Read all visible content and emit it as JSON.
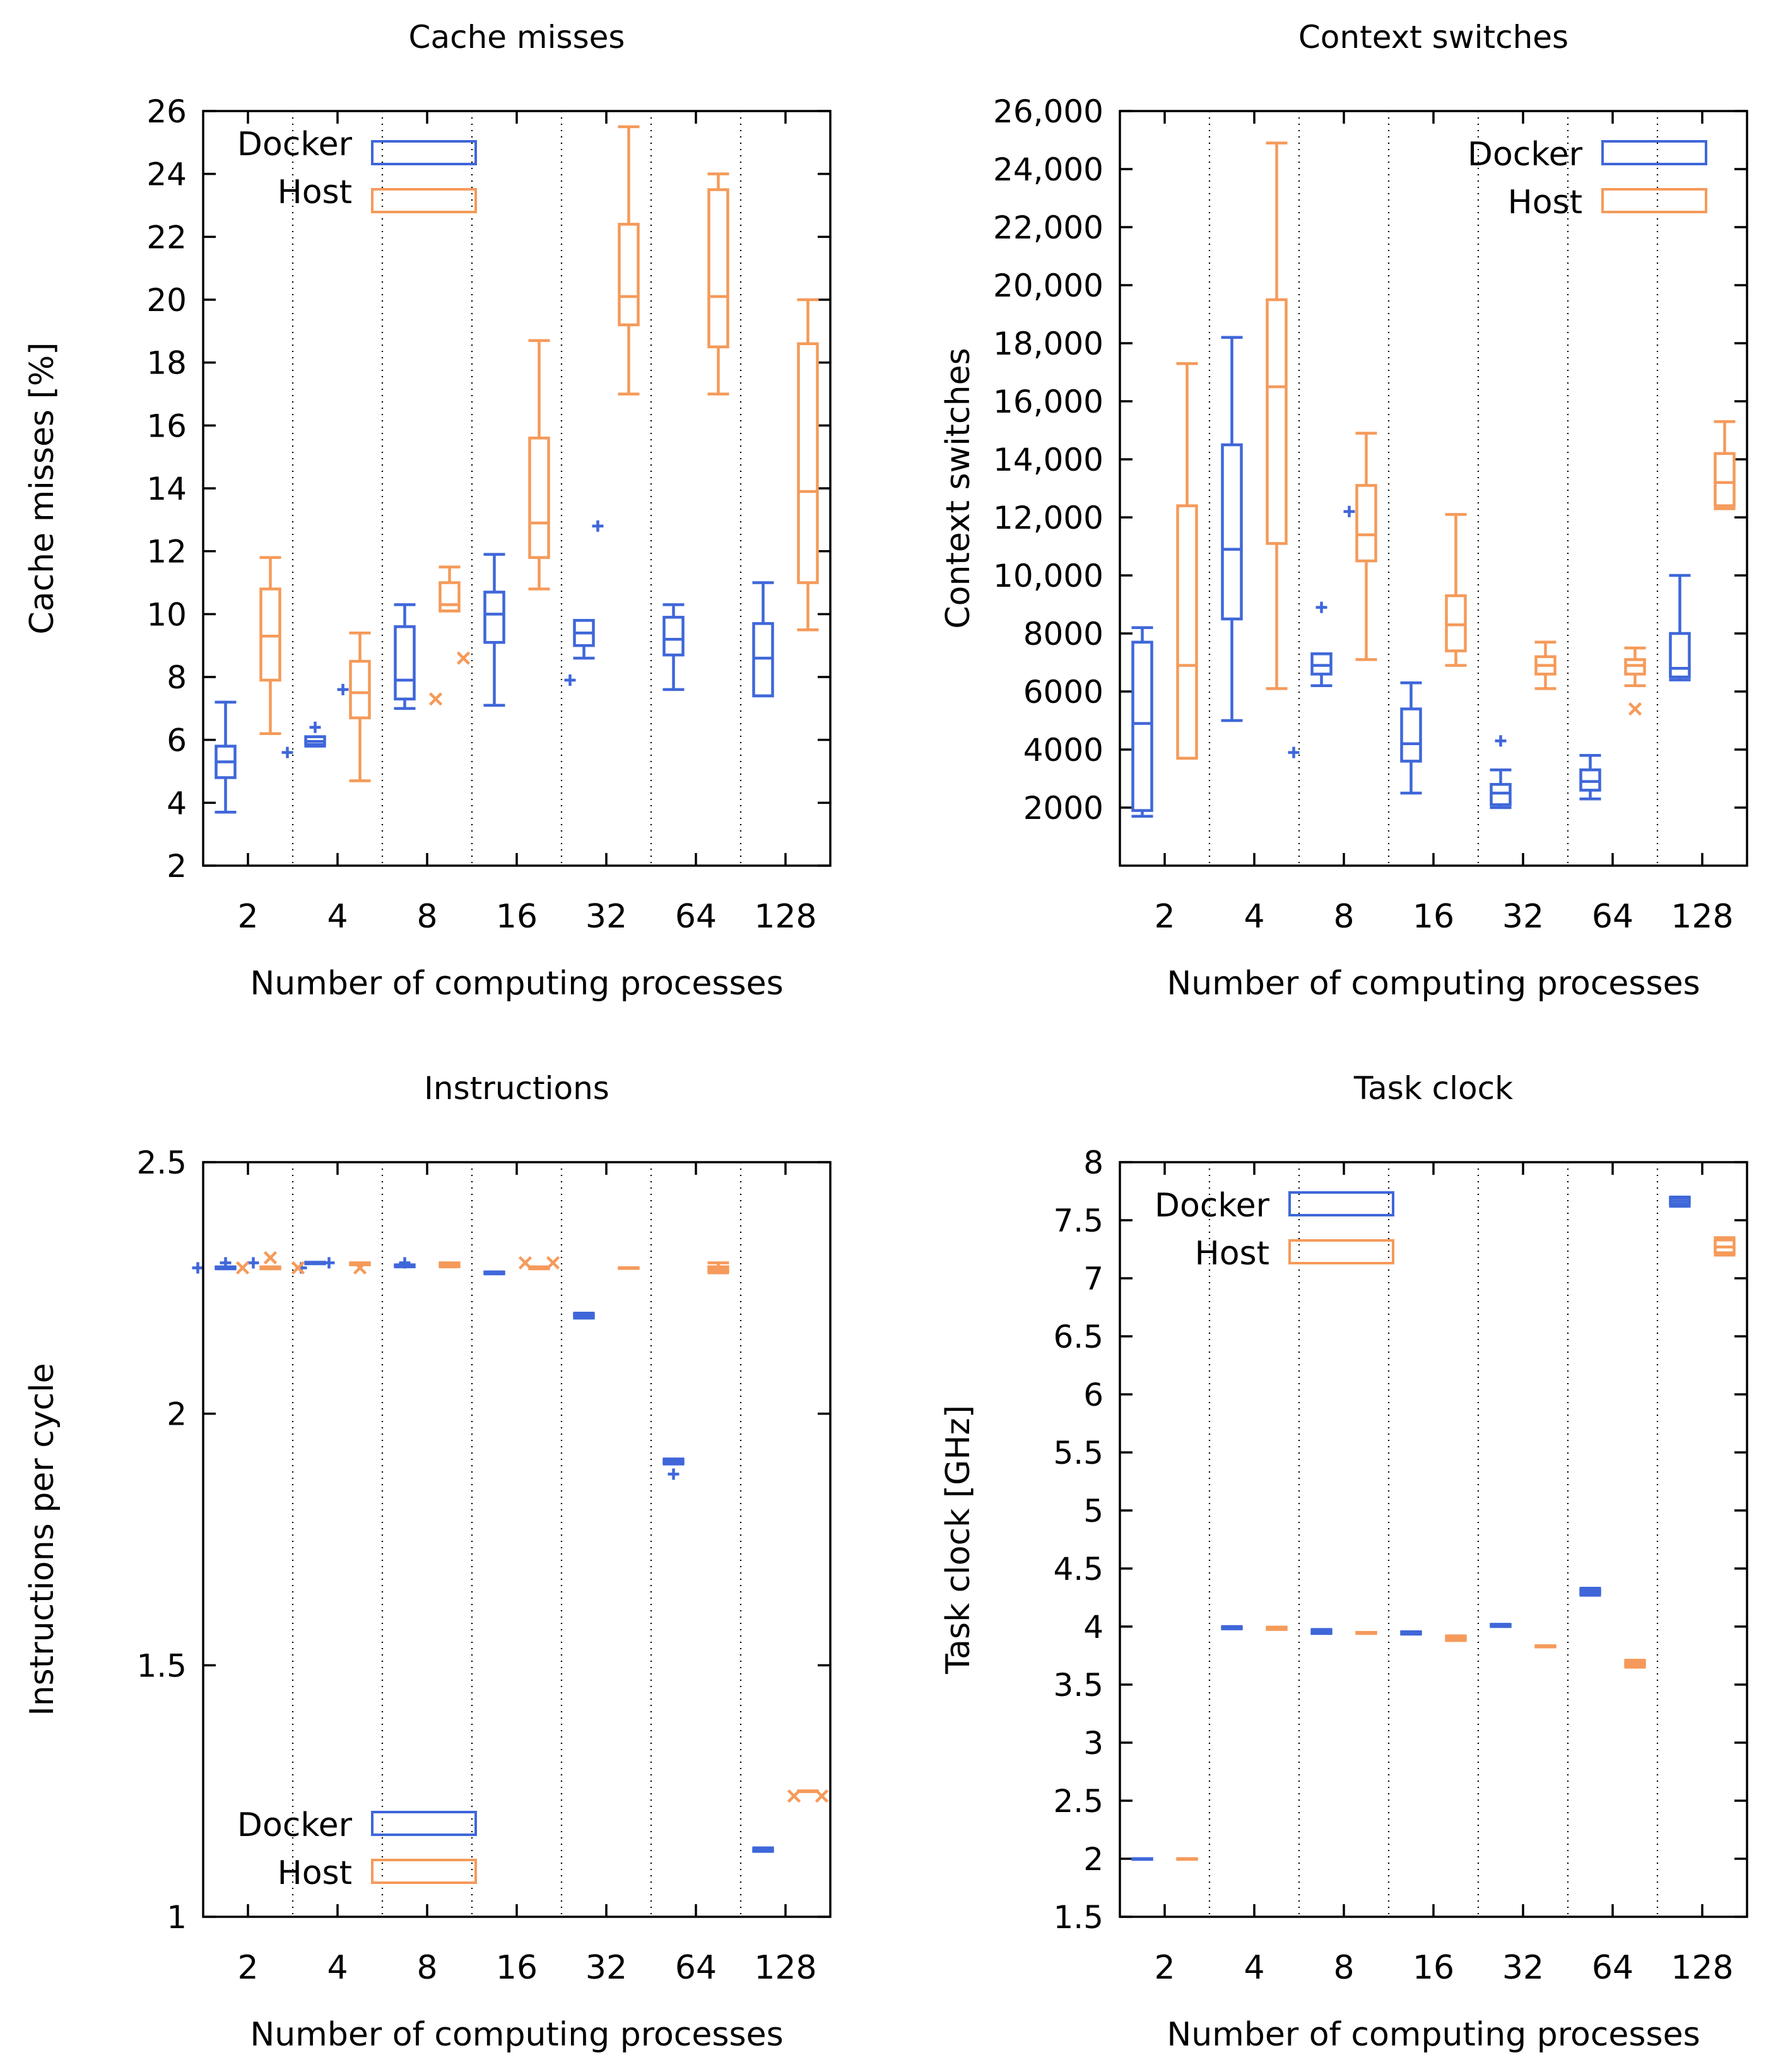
{
  "colors": {
    "docker": "#3f67d9",
    "host": "#f59a5a"
  },
  "chart_data": [
    {
      "type": "box",
      "title": "Cache misses",
      "xlabel": "Number of computing processes",
      "ylabel": "Cache misses [%]",
      "categories": [
        "2",
        "4",
        "8",
        "16",
        "32",
        "64",
        "128"
      ],
      "ylim": [
        2,
        26
      ],
      "yticks": [
        2,
        4,
        6,
        8,
        10,
        12,
        14,
        16,
        18,
        20,
        22,
        24,
        26
      ],
      "ytick_labels": [
        "2",
        "4",
        "6",
        "8",
        "10",
        "12",
        "14",
        "16",
        "18",
        "20",
        "22",
        "24",
        "26"
      ],
      "legend": {
        "position": "top-left",
        "docker": "Docker",
        "host": "Host"
      },
      "series": [
        {
          "name": "Docker",
          "outlier_marker": "+",
          "boxes": [
            {
              "min": 3.7,
              "q1": 4.8,
              "median": 5.3,
              "q3": 5.8,
              "max": 7.2,
              "outliers": []
            },
            {
              "min": 5.8,
              "q1": 5.85,
              "median": 5.95,
              "q3": 6.1,
              "max": 6.1,
              "outliers": [
                5.6,
                6.4,
                7.6
              ]
            },
            {
              "min": 7.0,
              "q1": 7.3,
              "median": 7.9,
              "q3": 9.6,
              "max": 10.3,
              "outliers": []
            },
            {
              "min": 7.1,
              "q1": 9.1,
              "median": 10.0,
              "q3": 10.7,
              "max": 11.9,
              "outliers": []
            },
            {
              "min": 8.6,
              "q1": 9.0,
              "median": 9.4,
              "q3": 9.8,
              "max": 9.8,
              "outliers": [
                7.9,
                12.8
              ]
            },
            {
              "min": 7.6,
              "q1": 8.7,
              "median": 9.2,
              "q3": 9.9,
              "max": 10.3,
              "outliers": []
            },
            {
              "min": 7.4,
              "q1": 7.4,
              "median": 8.6,
              "q3": 9.7,
              "max": 11.0,
              "outliers": []
            }
          ]
        },
        {
          "name": "Host",
          "outlier_marker": "x",
          "boxes": [
            {
              "min": 6.2,
              "q1": 7.9,
              "median": 9.3,
              "q3": 10.8,
              "max": 11.8,
              "outliers": []
            },
            {
              "min": 4.7,
              "q1": 6.7,
              "median": 7.5,
              "q3": 8.5,
              "max": 9.4,
              "outliers": []
            },
            {
              "min": 10.1,
              "q1": 10.1,
              "median": 10.3,
              "q3": 11.0,
              "max": 11.5,
              "outliers": [
                7.3,
                8.6
              ]
            },
            {
              "min": 10.8,
              "q1": 11.8,
              "median": 12.9,
              "q3": 15.6,
              "max": 18.7,
              "outliers": []
            },
            {
              "min": 17.0,
              "q1": 19.2,
              "median": 20.1,
              "q3": 22.4,
              "max": 25.5,
              "outliers": []
            },
            {
              "min": 17.0,
              "q1": 18.5,
              "median": 20.1,
              "q3": 23.5,
              "max": 24.0,
              "outliers": []
            },
            {
              "min": 9.5,
              "q1": 11.0,
              "median": 13.9,
              "q3": 18.6,
              "max": 20.0,
              "outliers": []
            }
          ]
        }
      ]
    },
    {
      "type": "box",
      "title": "Context switches",
      "xlabel": "Number of computing processes",
      "ylabel": "Context switches",
      "categories": [
        "2",
        "4",
        "8",
        "16",
        "32",
        "64",
        "128"
      ],
      "ylim": [
        0,
        26000
      ],
      "yticks": [
        2000,
        4000,
        6000,
        8000,
        10000,
        12000,
        14000,
        16000,
        18000,
        20000,
        22000,
        24000,
        26000
      ],
      "ytick_labels": [
        "2000",
        "4000",
        "6000",
        "8000",
        "10,000",
        "12,000",
        "14,000",
        "16,000",
        "18,000",
        "20,000",
        "22,000",
        "24,000",
        "26,000"
      ],
      "legend": {
        "position": "top-right",
        "docker": "Docker",
        "host": "Host"
      },
      "series": [
        {
          "name": "Docker",
          "outlier_marker": "+",
          "boxes": [
            {
              "min": 1700,
              "q1": 1900,
              "median": 4900,
              "q3": 7700,
              "max": 8200,
              "outliers": []
            },
            {
              "min": 5000,
              "q1": 8500,
              "median": 10900,
              "q3": 14500,
              "max": 18200,
              "outliers": []
            },
            {
              "min": 6200,
              "q1": 6600,
              "median": 6900,
              "q3": 7300,
              "max": 7300,
              "outliers": [
                3900,
                8900,
                12200
              ]
            },
            {
              "min": 2500,
              "q1": 3600,
              "median": 4200,
              "q3": 5400,
              "max": 6300,
              "outliers": []
            },
            {
              "min": 2000,
              "q1": 2100,
              "median": 2500,
              "q3": 2800,
              "max": 3300,
              "outliers": [
                4300
              ]
            },
            {
              "min": 2300,
              "q1": 2600,
              "median": 2900,
              "q3": 3300,
              "max": 3800,
              "outliers": []
            },
            {
              "min": 6400,
              "q1": 6500,
              "median": 6800,
              "q3": 8000,
              "max": 10000,
              "outliers": []
            }
          ]
        },
        {
          "name": "Host",
          "outlier_marker": "x",
          "boxes": [
            {
              "min": 3700,
              "q1": 3700,
              "median": 6900,
              "q3": 12400,
              "max": 17300,
              "outliers": []
            },
            {
              "min": 6100,
              "q1": 11100,
              "median": 16500,
              "q3": 19500,
              "max": 24900,
              "outliers": []
            },
            {
              "min": 7100,
              "q1": 10500,
              "median": 11400,
              "q3": 13100,
              "max": 14900,
              "outliers": []
            },
            {
              "min": 6900,
              "q1": 7400,
              "median": 8300,
              "q3": 9300,
              "max": 12100,
              "outliers": []
            },
            {
              "min": 6100,
              "q1": 6600,
              "median": 6900,
              "q3": 7200,
              "max": 7700,
              "outliers": []
            },
            {
              "min": 6200,
              "q1": 6600,
              "median": 6900,
              "q3": 7100,
              "max": 7500,
              "outliers": [
                5400
              ]
            },
            {
              "min": 12300,
              "q1": 12400,
              "median": 13200,
              "q3": 14200,
              "max": 15300,
              "outliers": []
            }
          ]
        }
      ]
    },
    {
      "type": "box",
      "title": "Instructions",
      "xlabel": "Number of computing processes",
      "ylabel": "Instructions per cycle",
      "categories": [
        "2",
        "4",
        "8",
        "16",
        "32",
        "64",
        "128"
      ],
      "ylim": [
        1,
        2.5
      ],
      "yticks": [
        1,
        1.5,
        2,
        2.5
      ],
      "ytick_labels": [
        "1",
        "1.5",
        "2",
        "2.5"
      ],
      "legend": {
        "position": "bottom-left",
        "docker": "Docker",
        "host": "Host"
      },
      "series": [
        {
          "name": "Docker",
          "outlier_marker": "+",
          "boxes": [
            {
              "min": 2.288,
              "q1": 2.289,
              "median": 2.29,
              "q3": 2.291,
              "max": 2.292,
              "outliers": [
                2.29,
                2.3,
                2.3
              ]
            },
            {
              "min": 2.298,
              "q1": 2.299,
              "median": 2.3,
              "q3": 2.301,
              "max": 2.301,
              "outliers": [
                2.29,
                2.3
              ]
            },
            {
              "min": 2.292,
              "q1": 2.293,
              "median": 2.294,
              "q3": 2.295,
              "max": 2.296,
              "outliers": [
                2.3
              ]
            },
            {
              "min": 2.278,
              "q1": 2.279,
              "median": 2.28,
              "q3": 2.281,
              "max": 2.282,
              "outliers": []
            },
            {
              "min": 2.19,
              "q1": 2.192,
              "median": 2.195,
              "q3": 2.198,
              "max": 2.2,
              "outliers": []
            },
            {
              "min": 1.9,
              "q1": 1.902,
              "median": 1.905,
              "q3": 1.908,
              "max": 1.91,
              "outliers": [
                1.88
              ]
            },
            {
              "min": 1.13,
              "q1": 1.131,
              "median": 1.133,
              "q3": 1.135,
              "max": 1.137,
              "outliers": []
            }
          ]
        },
        {
          "name": "Host",
          "outlier_marker": "x",
          "boxes": [
            {
              "min": 2.288,
              "q1": 2.289,
              "median": 2.29,
              "q3": 2.291,
              "max": 2.292,
              "outliers": [
                2.29,
                2.31,
                2.29
              ]
            },
            {
              "min": 2.296,
              "q1": 2.297,
              "median": 2.298,
              "q3": 2.299,
              "max": 2.3,
              "outliers": [
                2.29
              ]
            },
            {
              "min": 2.292,
              "q1": 2.294,
              "median": 2.296,
              "q3": 2.298,
              "max": 2.3,
              "outliers": []
            },
            {
              "min": 2.288,
              "q1": 2.289,
              "median": 2.29,
              "q3": 2.291,
              "max": 2.292,
              "outliers": [
                2.3,
                2.3
              ]
            },
            {
              "min": 2.29,
              "q1": 2.29,
              "median": 2.29,
              "q3": 2.29,
              "max": 2.29,
              "outliers": []
            },
            {
              "min": 2.28,
              "q1": 2.283,
              "median": 2.287,
              "q3": 2.292,
              "max": 2.3,
              "outliers": []
            },
            {
              "min": 1.25,
              "q1": 1.25,
              "median": 1.25,
              "q3": 1.25,
              "max": 1.25,
              "outliers": [
                1.24,
                1.24
              ]
            }
          ]
        }
      ]
    },
    {
      "type": "box",
      "title": "Task clock",
      "xlabel": "Number of computing processes",
      "ylabel": "Task clock [GHz]",
      "categories": [
        "2",
        "4",
        "8",
        "16",
        "32",
        "64",
        "128"
      ],
      "ylim": [
        1.5,
        8
      ],
      "yticks": [
        1.5,
        2,
        2.5,
        3,
        3.5,
        4,
        4.5,
        5,
        5.5,
        6,
        6.5,
        7,
        7.5,
        8
      ],
      "ytick_labels": [
        "1.5",
        "2",
        "2.5",
        "3",
        "3.5",
        "4",
        "4.5",
        "5",
        "5.5",
        "6",
        "6.5",
        "7",
        "7.5",
        "8"
      ],
      "legend": {
        "position": "top-left",
        "docker": "Docker",
        "host": "Host"
      },
      "series": [
        {
          "name": "Docker",
          "outlier_marker": "+",
          "boxes": [
            {
              "min": 2.0,
              "q1": 2.0,
              "median": 2.0,
              "q3": 2.0,
              "max": 2.0,
              "outliers": []
            },
            {
              "min": 3.98,
              "q1": 3.985,
              "median": 3.99,
              "q3": 3.995,
              "max": 4.0,
              "outliers": []
            },
            {
              "min": 3.94,
              "q1": 3.945,
              "median": 3.955,
              "q3": 3.965,
              "max": 3.975,
              "outliers": []
            },
            {
              "min": 3.935,
              "q1": 3.94,
              "median": 3.945,
              "q3": 3.95,
              "max": 3.955,
              "outliers": []
            },
            {
              "min": 4.0,
              "q1": 4.005,
              "median": 4.01,
              "q3": 4.015,
              "max": 4.02,
              "outliers": []
            },
            {
              "min": 4.27,
              "q1": 4.285,
              "median": 4.3,
              "q3": 4.315,
              "max": 4.33,
              "outliers": []
            },
            {
              "min": 7.62,
              "q1": 7.64,
              "median": 7.665,
              "q3": 7.69,
              "max": 7.7,
              "outliers": []
            }
          ]
        },
        {
          "name": "Host",
          "outlier_marker": "x",
          "boxes": [
            {
              "min": 2.0,
              "q1": 2.0,
              "median": 2.0,
              "q3": 2.0,
              "max": 2.0,
              "outliers": []
            },
            {
              "min": 3.975,
              "q1": 3.98,
              "median": 3.985,
              "q3": 3.99,
              "max": 3.995,
              "outliers": []
            },
            {
              "min": 3.94,
              "q1": 3.942,
              "median": 3.945,
              "q3": 3.948,
              "max": 3.95,
              "outliers": []
            },
            {
              "min": 3.88,
              "q1": 3.89,
              "median": 3.9,
              "q3": 3.91,
              "max": 3.92,
              "outliers": []
            },
            {
              "min": 3.825,
              "q1": 3.828,
              "median": 3.83,
              "q3": 3.832,
              "max": 3.835,
              "outliers": []
            },
            {
              "min": 3.65,
              "q1": 3.665,
              "median": 3.68,
              "q3": 3.695,
              "max": 3.71,
              "outliers": []
            },
            {
              "min": 7.2,
              "q1": 7.22,
              "median": 7.27,
              "q3": 7.33,
              "max": 7.35,
              "outliers": []
            }
          ]
        }
      ]
    }
  ]
}
